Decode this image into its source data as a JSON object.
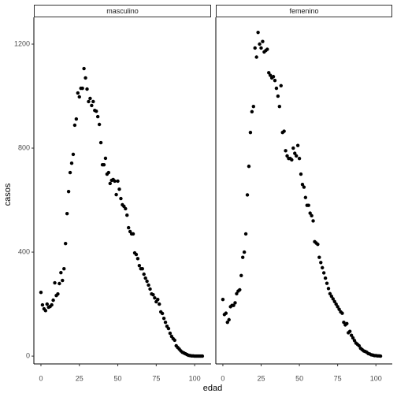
{
  "axis_labels": {
    "x": "edad",
    "y": "casos"
  },
  "chart_data": [
    {
      "type": "scatter",
      "title": "masculino",
      "color": "#000000",
      "x": [
        0,
        1,
        2,
        3,
        4,
        5,
        6,
        7,
        8,
        9,
        10,
        11,
        12,
        13,
        14,
        15,
        16,
        17,
        18,
        19,
        20,
        21,
        22,
        23,
        24,
        25,
        26,
        27,
        28,
        29,
        30,
        31,
        32,
        33,
        34,
        35,
        36,
        37,
        38,
        39,
        40,
        41,
        42,
        43,
        44,
        45,
        46,
        47,
        48,
        49,
        50,
        51,
        52,
        53,
        54,
        55,
        56,
        57,
        58,
        59,
        60,
        61,
        62,
        63,
        64,
        65,
        66,
        67,
        68,
        69,
        70,
        71,
        72,
        73,
        74,
        75,
        76,
        77,
        78,
        79,
        80,
        81,
        82,
        83,
        84,
        85,
        86,
        87,
        88,
        89,
        90,
        91,
        92,
        93,
        94,
        95,
        96,
        97,
        98,
        99,
        100,
        101,
        102,
        103,
        104,
        105
      ],
      "values": [
        245,
        197,
        182,
        175,
        200,
        188,
        191,
        197,
        215,
        282,
        233,
        239,
        279,
        321,
        291,
        336,
        433,
        548,
        633,
        706,
        742,
        776,
        888,
        912,
        1012,
        997,
        1030,
        1030,
        1106,
        1070,
        1027,
        979,
        991,
        964,
        979,
        945,
        942,
        921,
        891,
        821,
        736,
        736,
        761,
        700,
        706,
        664,
        676,
        679,
        673,
        621,
        673,
        642,
        606,
        582,
        576,
        567,
        542,
        494,
        479,
        470,
        470,
        397,
        391,
        375,
        348,
        336,
        336,
        315,
        300,
        288,
        273,
        258,
        239,
        236,
        224,
        209,
        218,
        200,
        170,
        164,
        145,
        130,
        115,
        106,
        88,
        76,
        67,
        61,
        40,
        33,
        27,
        20,
        15,
        12,
        9,
        6,
        3,
        2,
        1,
        1,
        0,
        0,
        0,
        0,
        0,
        0
      ],
      "xlim": [
        -4.6,
        110.7
      ],
      "xticks": [
        0,
        25,
        50,
        75,
        100
      ],
      "ylim": [
        -30,
        1303
      ],
      "yticks": [
        0,
        400,
        800,
        1200
      ]
    },
    {
      "type": "scatter",
      "title": "femenino",
      "color": "#000000",
      "x": [
        0,
        1,
        2,
        3,
        4,
        5,
        6,
        7,
        8,
        9,
        10,
        11,
        12,
        13,
        14,
        15,
        16,
        17,
        18,
        19,
        20,
        21,
        22,
        23,
        24,
        25,
        26,
        27,
        28,
        29,
        30,
        31,
        32,
        33,
        34,
        35,
        36,
        37,
        38,
        39,
        40,
        41,
        42,
        43,
        44,
        45,
        46,
        47,
        48,
        49,
        50,
        51,
        52,
        53,
        54,
        55,
        56,
        57,
        58,
        59,
        60,
        61,
        62,
        63,
        64,
        65,
        66,
        67,
        68,
        69,
        70,
        71,
        72,
        73,
        74,
        75,
        76,
        77,
        78,
        79,
        80,
        81,
        82,
        83,
        84,
        85,
        86,
        87,
        88,
        89,
        90,
        91,
        92,
        93,
        94,
        95,
        96,
        97,
        98,
        99,
        100,
        101,
        102,
        103
      ],
      "values": [
        218,
        160,
        165,
        130,
        140,
        190,
        195,
        195,
        205,
        240,
        250,
        255,
        310,
        380,
        400,
        470,
        620,
        730,
        860,
        940,
        960,
        1185,
        1150,
        1245,
        1200,
        1185,
        1210,
        1170,
        1175,
        1180,
        1090,
        1080,
        1070,
        1075,
        1060,
        1030,
        1000,
        960,
        1040,
        860,
        865,
        790,
        770,
        760,
        760,
        755,
        800,
        780,
        770,
        810,
        760,
        700,
        660,
        650,
        610,
        580,
        580,
        550,
        540,
        520,
        440,
        435,
        430,
        380,
        360,
        340,
        320,
        300,
        280,
        260,
        240,
        230,
        220,
        210,
        200,
        190,
        180,
        170,
        165,
        130,
        120,
        125,
        90,
        95,
        80,
        70,
        60,
        50,
        45,
        40,
        30,
        25,
        20,
        18,
        15,
        10,
        8,
        5,
        4,
        2,
        2,
        1,
        1,
        0
      ],
      "xlim": [
        -4.6,
        110.7
      ],
      "xticks": [
        0,
        25,
        50,
        75,
        100
      ],
      "ylim": [
        -30,
        1303
      ]
    }
  ]
}
